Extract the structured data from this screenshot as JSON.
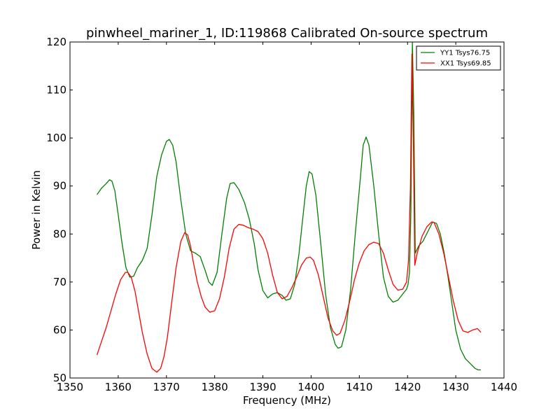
{
  "chart_data": {
    "type": "line",
    "title": "pinwheel_mariner_1, ID:119868 Calibrated On-source spectrum",
    "xlabel": "Frequency (MHz)",
    "ylabel": "Power in Kelvin",
    "xlim": [
      1350,
      1440
    ],
    "ylim": [
      50,
      120
    ],
    "xticks": [
      "1350",
      "1360",
      "1370",
      "1380",
      "1390",
      "1400",
      "1410",
      "1420",
      "1430",
      "1440"
    ],
    "yticks": [
      "50",
      "60",
      "70",
      "80",
      "90",
      "100",
      "110",
      "120"
    ],
    "grid": false,
    "legend_position": "top-right",
    "series": [
      {
        "name": "YY1 Tsys76.75",
        "color": "#008000",
        "x": [
          1355.6,
          1356.5,
          1357.5,
          1358.2,
          1358.7,
          1359.3,
          1360.0,
          1360.8,
          1361.6,
          1362.4,
          1363.2,
          1364.0,
          1365.0,
          1366.0,
          1367.0,
          1368.0,
          1369.0,
          1370.0,
          1370.6,
          1371.3,
          1372.0,
          1373.0,
          1374.0,
          1375.0,
          1376.0,
          1377.0,
          1378.0,
          1378.8,
          1379.5,
          1380.5,
          1381.5,
          1382.5,
          1383.2,
          1384.0,
          1385.0,
          1386.2,
          1387.2,
          1388.2,
          1389.0,
          1390.0,
          1391.0,
          1392.0,
          1393.0,
          1394.0,
          1394.8,
          1395.7,
          1396.6,
          1397.5,
          1398.4,
          1399.0,
          1399.6,
          1400.2,
          1401.0,
          1402.0,
          1403.0,
          1404.0,
          1405.0,
          1405.6,
          1406.3,
          1407.2,
          1408.2,
          1409.2,
          1410.2,
          1410.8,
          1411.4,
          1412.0,
          1413.0,
          1414.0,
          1415.0,
          1416.0,
          1417.0,
          1418.0,
          1419.0,
          1419.8,
          1420.1,
          1420.4,
          1420.7,
          1421.0,
          1421.3,
          1421.6,
          1422.3,
          1423.2,
          1424.2,
          1425.2,
          1426.0,
          1426.8,
          1427.6,
          1428.4,
          1429.2,
          1430.0,
          1431.0,
          1432.0,
          1433.0,
          1434.0,
          1434.6,
          1435.2
        ],
        "y": [
          88.2,
          89.5,
          90.5,
          91.3,
          91.0,
          89.0,
          84.0,
          78.0,
          73.0,
          71.0,
          71.2,
          73.0,
          74.5,
          77.0,
          84.0,
          92.0,
          96.5,
          99.3,
          99.7,
          98.5,
          95.0,
          87.0,
          80.0,
          76.5,
          76.0,
          75.3,
          72.5,
          70.0,
          69.3,
          72.0,
          80.0,
          87.5,
          90.5,
          90.7,
          89.3,
          86.5,
          83.0,
          78.0,
          72.5,
          68.2,
          66.7,
          67.5,
          67.8,
          67.2,
          66.2,
          66.5,
          69.5,
          76.0,
          84.5,
          90.0,
          93.0,
          92.5,
          88.0,
          78.0,
          67.5,
          60.5,
          57.0,
          56.2,
          56.5,
          60.0,
          68.5,
          80.5,
          91.5,
          98.5,
          100.2,
          98.5,
          90.0,
          80.0,
          71.0,
          67.0,
          65.8,
          66.2,
          67.5,
          68.5,
          69.5,
          72.0,
          85.0,
          120.0,
          105.0,
          76.0,
          77.5,
          78.5,
          80.5,
          82.5,
          82.2,
          80.0,
          76.0,
          71.0,
          65.5,
          60.0,
          56.0,
          54.0,
          53.0,
          52.0,
          51.7,
          51.7
        ]
      },
      {
        "name": "XX1 Tsys69.85",
        "color": "#ff0000",
        "x": [
          1355.6,
          1356.5,
          1357.5,
          1358.5,
          1359.5,
          1360.5,
          1361.5,
          1362.0,
          1362.7,
          1363.5,
          1364.2,
          1365.0,
          1366.0,
          1367.0,
          1368.0,
          1368.8,
          1369.5,
          1370.2,
          1371.0,
          1372.0,
          1373.0,
          1373.8,
          1374.4,
          1375.0,
          1375.6,
          1376.4,
          1377.2,
          1378.0,
          1379.0,
          1380.0,
          1381.0,
          1382.0,
          1383.0,
          1384.0,
          1385.0,
          1386.0,
          1387.0,
          1388.0,
          1389.0,
          1390.0,
          1391.0,
          1392.0,
          1393.0,
          1394.0,
          1395.0,
          1396.0,
          1397.0,
          1398.0,
          1399.0,
          1399.8,
          1400.5,
          1401.5,
          1402.5,
          1403.5,
          1404.5,
          1405.3,
          1406.0,
          1407.0,
          1408.0,
          1409.0,
          1410.0,
          1411.0,
          1412.0,
          1413.0,
          1414.0,
          1415.0,
          1416.0,
          1417.0,
          1418.0,
          1419.0,
          1419.8,
          1420.2,
          1420.6,
          1420.9,
          1421.2,
          1421.5,
          1422.0,
          1423.0,
          1424.0,
          1425.0,
          1425.5,
          1426.5,
          1427.5,
          1428.5,
          1429.5,
          1430.5,
          1431.5,
          1432.5,
          1433.5,
          1434.5,
          1435.2
        ],
        "y": [
          54.8,
          57.5,
          60.5,
          64.0,
          67.5,
          70.5,
          72.0,
          72.0,
          71.0,
          68.0,
          64.0,
          59.5,
          55.0,
          52.0,
          51.2,
          52.0,
          54.5,
          58.5,
          65.0,
          73.0,
          78.5,
          80.3,
          79.8,
          77.5,
          74.0,
          70.0,
          67.0,
          64.8,
          63.7,
          64.0,
          66.5,
          71.0,
          77.0,
          81.0,
          82.0,
          81.8,
          81.3,
          81.0,
          80.5,
          79.0,
          76.0,
          71.5,
          67.8,
          66.5,
          67.0,
          68.8,
          71.0,
          73.5,
          75.0,
          75.2,
          74.5,
          71.5,
          67.0,
          62.5,
          59.8,
          58.9,
          59.3,
          62.0,
          66.0,
          70.5,
          74.0,
          76.5,
          77.8,
          78.3,
          78.0,
          76.0,
          72.5,
          69.5,
          68.3,
          68.5,
          70.0,
          74.5,
          90.0,
          117.5,
          100.0,
          73.5,
          76.0,
          79.5,
          81.5,
          82.5,
          82.4,
          80.0,
          76.0,
          71.0,
          66.0,
          62.0,
          59.8,
          59.5,
          60.0,
          60.3,
          59.5
        ]
      }
    ]
  }
}
